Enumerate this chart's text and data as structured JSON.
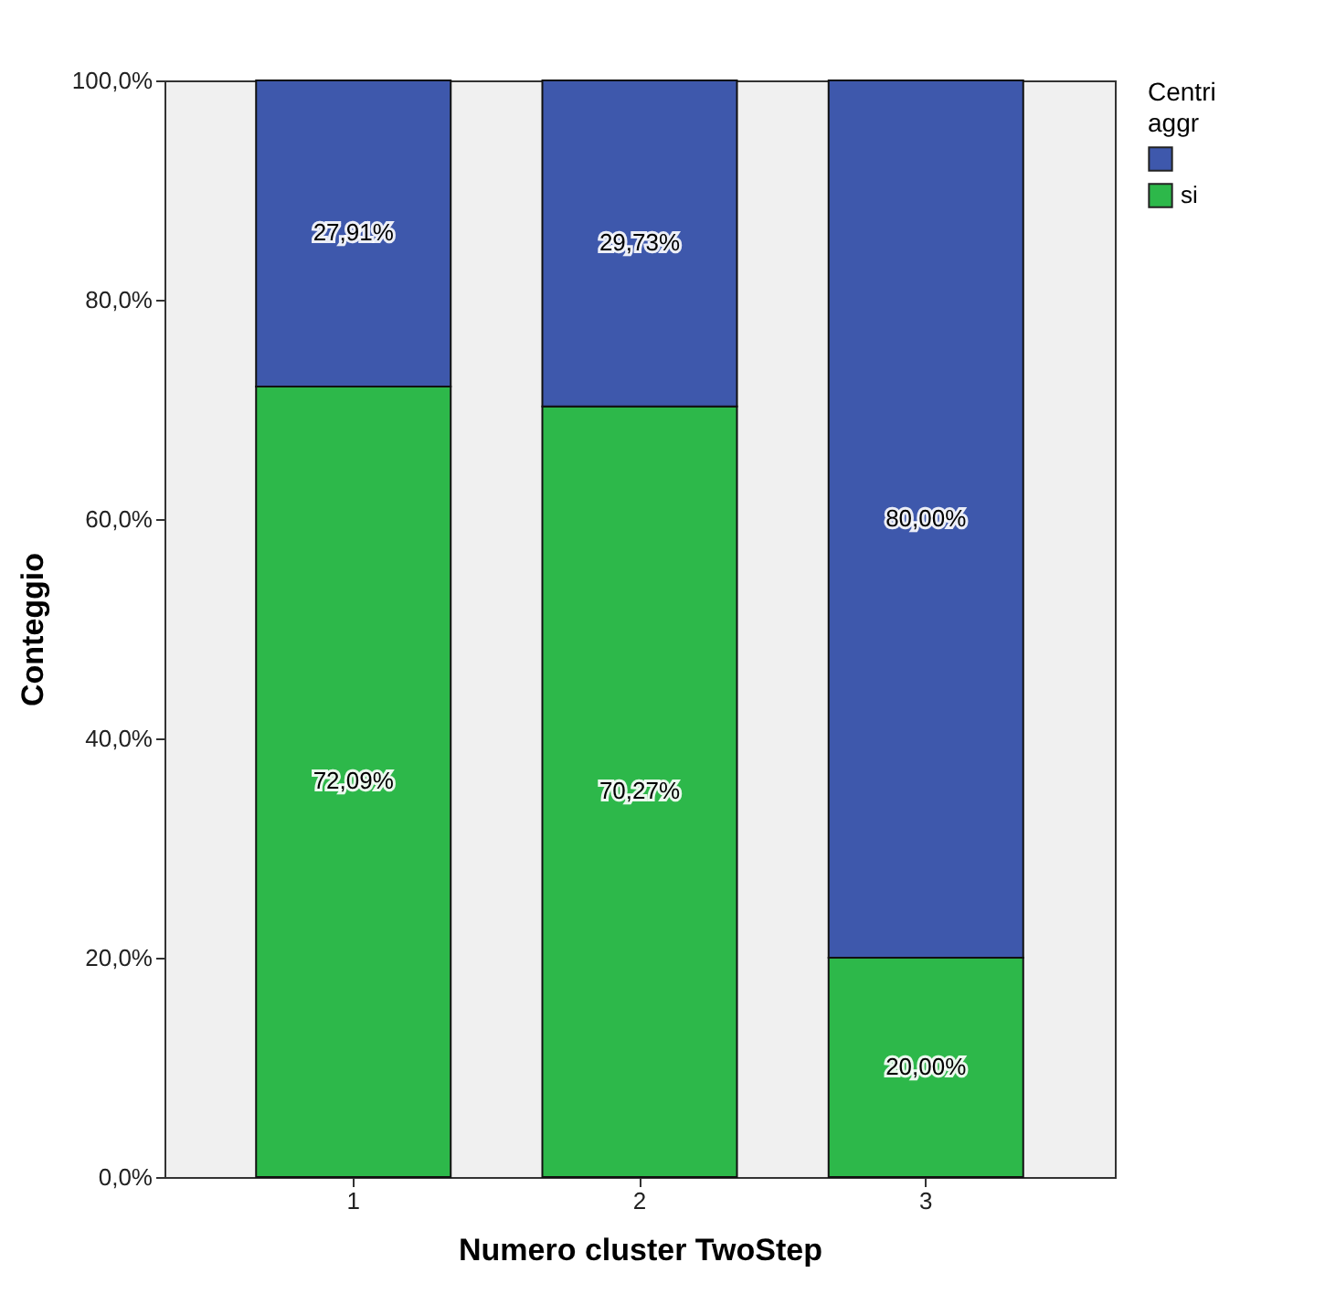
{
  "chart_data": {
    "type": "bar",
    "stacked": true,
    "xlabel": "Numero cluster TwoStep",
    "ylabel": "Conteggio",
    "legend_title": "Centri aggr",
    "legend": "top right",
    "grid": false,
    "categories": [
      "1",
      "2",
      "3"
    ],
    "series": [
      {
        "name": "si",
        "color": "#2db84a",
        "values": [
          72.09,
          70.27,
          20.0
        ],
        "value_labels": [
          "72,09%",
          "70,27%",
          "20,00%"
        ]
      },
      {
        "color": "#3e58ac",
        "values": [
          27.91,
          29.73,
          80.0
        ],
        "value_labels": [
          "27,91%",
          "29,73%",
          "80,00%"
        ]
      }
    ],
    "ylim": [
      0,
      100
    ],
    "yticks": [
      {
        "value": 0,
        "label": "0,0%"
      },
      {
        "value": 20,
        "label": "20,0%"
      },
      {
        "value": 40,
        "label": "40,0%"
      },
      {
        "value": 60,
        "label": "60,0%"
      },
      {
        "value": 80,
        "label": "80,0%"
      },
      {
        "value": 100,
        "label": "100,0%"
      }
    ]
  }
}
